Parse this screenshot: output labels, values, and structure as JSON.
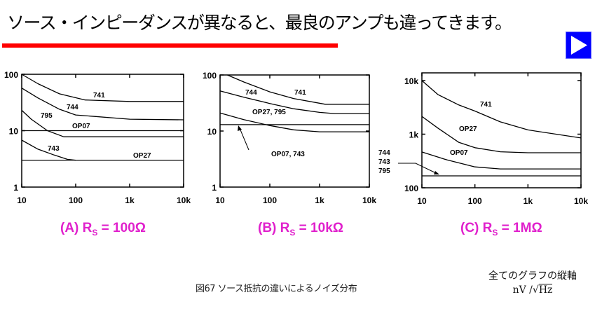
{
  "header": {
    "title": "ソース・インピーダンスが異なると、最良のアンプも違ってきます。",
    "next_icon": "play-triangle-icon",
    "accent_red": "#ff0000",
    "button_blue": "#0000ff"
  },
  "subtitles": [
    {
      "prefix": "(A)  R",
      "sub": "S",
      "value": " = 100Ω"
    },
    {
      "prefix": "(B)  R",
      "sub": "S",
      "value": " = 10kΩ"
    },
    {
      "prefix": "(C)  R",
      "sub": "S",
      "value": " = 1MΩ"
    }
  ],
  "subtitle_color": "#e020cc",
  "caption": "図67  ソース抵抗の違いによるノイズ分布",
  "axis_note": {
    "line1": "全てのグラフの縦軸",
    "unit_prefix": "nV /√",
    "unit_root": "Hz"
  },
  "chart_data": [
    {
      "type": "line",
      "title": "(A) RS = 100Ω",
      "xscale": "log",
      "yscale": "log",
      "xlim": [
        10,
        10000
      ],
      "ylim": [
        1,
        100
      ],
      "xticks": [
        "10",
        "100",
        "1k",
        "10k"
      ],
      "xtick_values": [
        10,
        100,
        1000,
        10000
      ],
      "yticks": [
        "1",
        "10",
        "100"
      ],
      "ytick_values": [
        1,
        10,
        100
      ],
      "series": [
        {
          "name": "741",
          "x": [
            10,
            20,
            50,
            150,
            1000,
            10000
          ],
          "y": [
            100,
            68,
            45,
            35,
            33,
            33
          ]
        },
        {
          "name": "744",
          "x": [
            10,
            20,
            50,
            100,
            1000,
            10000
          ],
          "y": [
            57,
            38,
            24,
            19,
            16,
            15.6
          ]
        },
        {
          "name": "795",
          "x": [
            10,
            15,
            30,
            60,
            10000
          ],
          "y": [
            23,
            16,
            10,
            7.8,
            7.8
          ]
        },
        {
          "name": "OP07",
          "x": [
            10,
            10000
          ],
          "y": [
            10,
            10
          ]
        },
        {
          "name": "743",
          "x": [
            10,
            20,
            40,
            70,
            100
          ],
          "y": [
            6.8,
            4.7,
            3.7,
            3.1,
            3.0
          ]
        },
        {
          "name": "OP27",
          "x": [
            10,
            10000
          ],
          "y": [
            3.0,
            3.0
          ]
        }
      ]
    },
    {
      "type": "line",
      "title": "(B) RS = 10kΩ",
      "xscale": "log",
      "yscale": "log",
      "xlim": [
        10,
        10000
      ],
      "ylim": [
        1,
        100
      ],
      "xticks": [
        "10",
        "100",
        "1k",
        "10k"
      ],
      "xtick_values": [
        10,
        100,
        1000,
        10000
      ],
      "yticks": [
        "1",
        "10",
        "100"
      ],
      "ytick_values": [
        1,
        10,
        100
      ],
      "series": [
        {
          "name": "741",
          "x": [
            14,
            30,
            100,
            300,
            1300,
            10000
          ],
          "y": [
            100,
            75,
            50,
            38,
            30,
            30
          ]
        },
        {
          "name": "744",
          "x": [
            10,
            30,
            100,
            300,
            1000,
            2000,
            10000
          ],
          "y": [
            52,
            40,
            31,
            25,
            21.5,
            20.5,
            20.5
          ]
        },
        {
          "name": "OP27, 795",
          "x": [
            10,
            30,
            100,
            300,
            1000,
            10000
          ],
          "y": [
            21,
            16,
            12.5,
            10.5,
            9.7,
            9.7
          ]
        },
        {
          "name": "OP07, 743",
          "x": [
            10,
            10000
          ],
          "y": [
            13,
            13
          ]
        }
      ]
    },
    {
      "type": "line",
      "title": "(C) RS = 1MΩ",
      "xscale": "log",
      "yscale": "log",
      "xlim": [
        10,
        10000
      ],
      "ylim": [
        100,
        10000
      ],
      "xticks": [
        "10",
        "100",
        "1k",
        "10k"
      ],
      "xtick_values": [
        10,
        100,
        1000,
        10000
      ],
      "yticks": [
        "100",
        "1k",
        "10k"
      ],
      "ytick_values": [
        100,
        1000,
        10000
      ],
      "series": [
        {
          "name": "741",
          "x": [
            10,
            20,
            50,
            100,
            300,
            1000,
            10000
          ],
          "y": [
            10000,
            5500,
            3500,
            2700,
            1700,
            1200,
            850
          ]
        },
        {
          "name": "OP27",
          "x": [
            10,
            20,
            50,
            100,
            300,
            1000,
            10000
          ],
          "y": [
            2150,
            1300,
            700,
            560,
            470,
            450,
            450
          ]
        },
        {
          "name": "OP07",
          "x": [
            10,
            30,
            100,
            300,
            10000
          ],
          "y": [
            465,
            330,
            245,
            225,
            225
          ]
        },
        {
          "name": "744, 743, 795",
          "x": [
            10,
            10000
          ],
          "y": [
            167,
            167
          ]
        }
      ],
      "side_labels": [
        "744",
        "743",
        "795"
      ]
    }
  ]
}
